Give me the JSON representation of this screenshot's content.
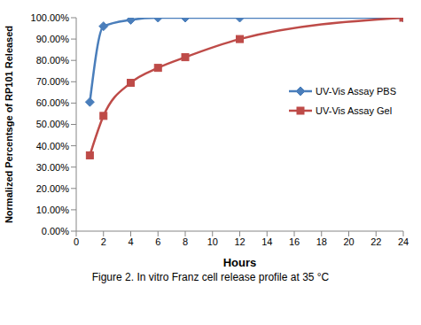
{
  "chart_data": {
    "type": "line",
    "caption": "Figure 2. In vitro Franz cell release profile at 35 °C",
    "x_label": "Hours",
    "y_label": "Normalized Percentsge of RP101 Released",
    "x": [
      1,
      2,
      4,
      6,
      8,
      12,
      24
    ],
    "series": [
      {
        "name": "UV-Vis Assay PBS",
        "color": "#4a7ebb",
        "marker": "diamond",
        "values": [
          60.5,
          96,
          99,
          100,
          100,
          100,
          100
        ]
      },
      {
        "name": "UV-Vis Assay Gel",
        "color": "#be4b48",
        "marker": "square",
        "values": [
          35.5,
          54,
          69.5,
          76.5,
          81.5,
          90,
          100
        ]
      }
    ],
    "xlim": [
      0,
      24
    ],
    "xticks": [
      0,
      2,
      4,
      6,
      8,
      10,
      12,
      14,
      16,
      18,
      20,
      22,
      24
    ],
    "ylim": [
      0,
      100
    ],
    "yticks": [
      {
        "value": 0,
        "label": "0.00%"
      },
      {
        "value": 10,
        "label": "10.00%"
      },
      {
        "value": 20,
        "label": "20.00%"
      },
      {
        "value": 30,
        "label": "30.00%"
      },
      {
        "value": 40,
        "label": "40.00%"
      },
      {
        "value": 50,
        "label": "50.00%"
      },
      {
        "value": 60,
        "label": "60.00%"
      },
      {
        "value": 70,
        "label": "70.00%"
      },
      {
        "value": 80,
        "label": "80.00%"
      },
      {
        "value": 90,
        "label": "90.00%"
      },
      {
        "value": 100,
        "label": "100.00%"
      }
    ],
    "grid": false,
    "legend": "right"
  }
}
